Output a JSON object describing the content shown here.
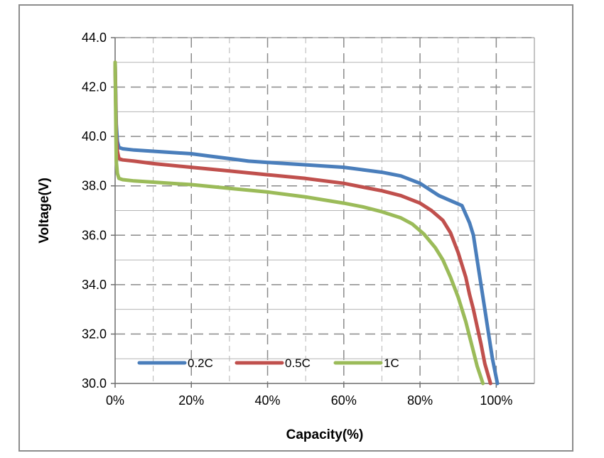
{
  "chart_data": {
    "type": "line",
    "title": "",
    "xlabel": "Capacity(%)",
    "ylabel": "Voltage(V)",
    "xlim": [
      0,
      110
    ],
    "ylim": [
      30,
      44
    ],
    "x_ticks": [
      0,
      20,
      40,
      60,
      80,
      100
    ],
    "x_tick_labels": [
      "0%",
      "20%",
      "40%",
      "60%",
      "80%",
      "100%"
    ],
    "y_ticks": [
      30,
      32,
      34,
      36,
      38,
      40,
      42,
      44
    ],
    "y_tick_labels": [
      "30.0",
      "32.0",
      "34.0",
      "36.0",
      "38.0",
      "40.0",
      "42.0",
      "44.0"
    ],
    "grid": true,
    "legend_position": "bottom-left",
    "series": [
      {
        "name": "0.2C",
        "color": "#4a7ebb",
        "x": [
          0,
          0.3,
          0.6,
          1,
          2,
          5,
          10,
          20,
          25,
          30,
          35,
          40,
          50,
          60,
          65,
          70,
          75,
          80,
          85,
          88,
          91,
          93,
          94,
          95,
          96,
          97,
          98,
          99,
          100.3
        ],
        "y": [
          43.0,
          40.5,
          39.8,
          39.55,
          39.5,
          39.45,
          39.4,
          39.3,
          39.2,
          39.1,
          39.0,
          38.95,
          38.85,
          38.75,
          38.65,
          38.55,
          38.4,
          38.1,
          37.6,
          37.4,
          37.2,
          36.5,
          36.0,
          35.0,
          34.0,
          33.0,
          32.0,
          31.0,
          30.0
        ]
      },
      {
        "name": "0.5C",
        "color": "#c0504d",
        "x": [
          0,
          0.3,
          0.6,
          1,
          2,
          5,
          10,
          20,
          30,
          40,
          50,
          60,
          65,
          70,
          75,
          80,
          83,
          86,
          88,
          90,
          92,
          93,
          94,
          95,
          96,
          97,
          98.5
        ],
        "y": [
          43.0,
          40.0,
          39.4,
          39.1,
          39.05,
          39.0,
          38.9,
          38.75,
          38.6,
          38.45,
          38.3,
          38.1,
          37.95,
          37.8,
          37.6,
          37.3,
          37.0,
          36.6,
          36.1,
          35.3,
          34.3,
          33.6,
          33.0,
          32.3,
          31.6,
          30.8,
          30.0
        ]
      },
      {
        "name": "1C",
        "color": "#9bbb59",
        "x": [
          0,
          0.3,
          0.6,
          1,
          2,
          5,
          10,
          20,
          30,
          40,
          50,
          60,
          65,
          70,
          75,
          78,
          81,
          84,
          86,
          88,
          90,
          91,
          92,
          93,
          94,
          95,
          96.5
        ],
        "y": [
          43.0,
          39.0,
          38.5,
          38.3,
          38.25,
          38.2,
          38.15,
          38.05,
          37.9,
          37.75,
          37.55,
          37.3,
          37.15,
          36.95,
          36.7,
          36.45,
          36.05,
          35.5,
          35.0,
          34.3,
          33.5,
          33.0,
          32.5,
          31.9,
          31.3,
          30.7,
          30.0
        ]
      }
    ]
  }
}
